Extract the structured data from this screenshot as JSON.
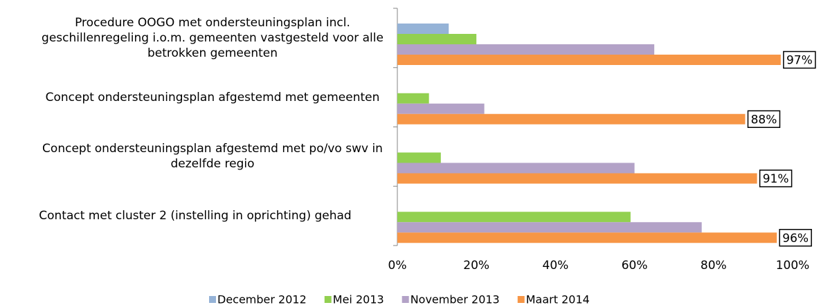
{
  "chart_data": {
    "type": "barh",
    "categories": [
      "Procedure OOGO met ondersteuningsplan incl. geschillenregeling i.o.m. gemeenten vastgesteld voor alle betrokken gemeenten",
      "Concept ondersteuningsplan afgestemd met gemeenten",
      "Concept ondersteuningsplan afgestemd met po/vo swv in dezelfde regio",
      "Contact met cluster 2 (instelling in oprichting) gehad"
    ],
    "series": [
      {
        "name": "December 2012",
        "color": "#95b3d7",
        "values": [
          13,
          0,
          0,
          0
        ]
      },
      {
        "name": "Mei 2013",
        "color": "#92d050",
        "values": [
          20,
          8,
          11,
          59
        ]
      },
      {
        "name": "November 2013",
        "color": "#b3a2c7",
        "values": [
          65,
          22,
          60,
          77
        ]
      },
      {
        "name": "Maart 2014",
        "color": "#f79646",
        "values": [
          97,
          88,
          91,
          96
        ],
        "value_labels": [
          "97%",
          "88%",
          "91%",
          "96%"
        ]
      }
    ],
    "xlim": [
      0,
      100
    ],
    "xticks": [
      {
        "value": 0,
        "label": "0%"
      },
      {
        "value": 20,
        "label": "20%"
      },
      {
        "value": 40,
        "label": "40%"
      },
      {
        "value": 60,
        "label": "60%"
      },
      {
        "value": 80,
        "label": "80%"
      },
      {
        "value": 100,
        "label": "100%"
      }
    ],
    "legend": "bottom"
  }
}
